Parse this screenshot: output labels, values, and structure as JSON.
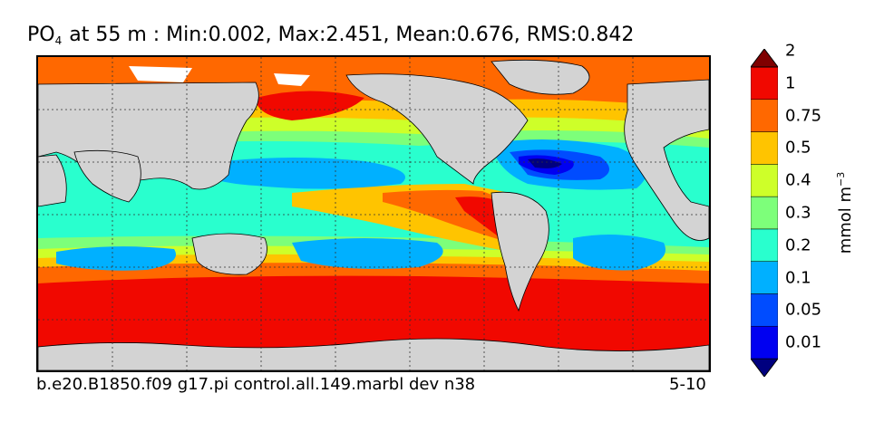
{
  "title": {
    "variable": "PO",
    "subscript": "4",
    "rest": "at 55 m : Min:0.002, Max:2.451, Mean:0.676, RMS:0.842"
  },
  "footer": {
    "case": "b.e20.B1850.f09 g17.pi control.all.149.marbl dev n38",
    "years": "5-10"
  },
  "colorbar": {
    "label_text": "mmol m",
    "label_exp": "−3",
    "levels": [
      "0.01",
      "0.05",
      "0.1",
      "0.2",
      "0.3",
      "0.4",
      "0.5",
      "0.75",
      "1",
      "2"
    ],
    "colors": [
      "#00007f",
      "#0000f1",
      "#004cff",
      "#00b0ff",
      "#29ffce",
      "#7dff7a",
      "#ceff29",
      "#ffc400",
      "#ff6800",
      "#f10800",
      "#7f0000"
    ]
  },
  "map": {
    "land_color": "#d3d3d3",
    "missing_color": "#ffffff",
    "gridlines": "dotted"
  }
}
